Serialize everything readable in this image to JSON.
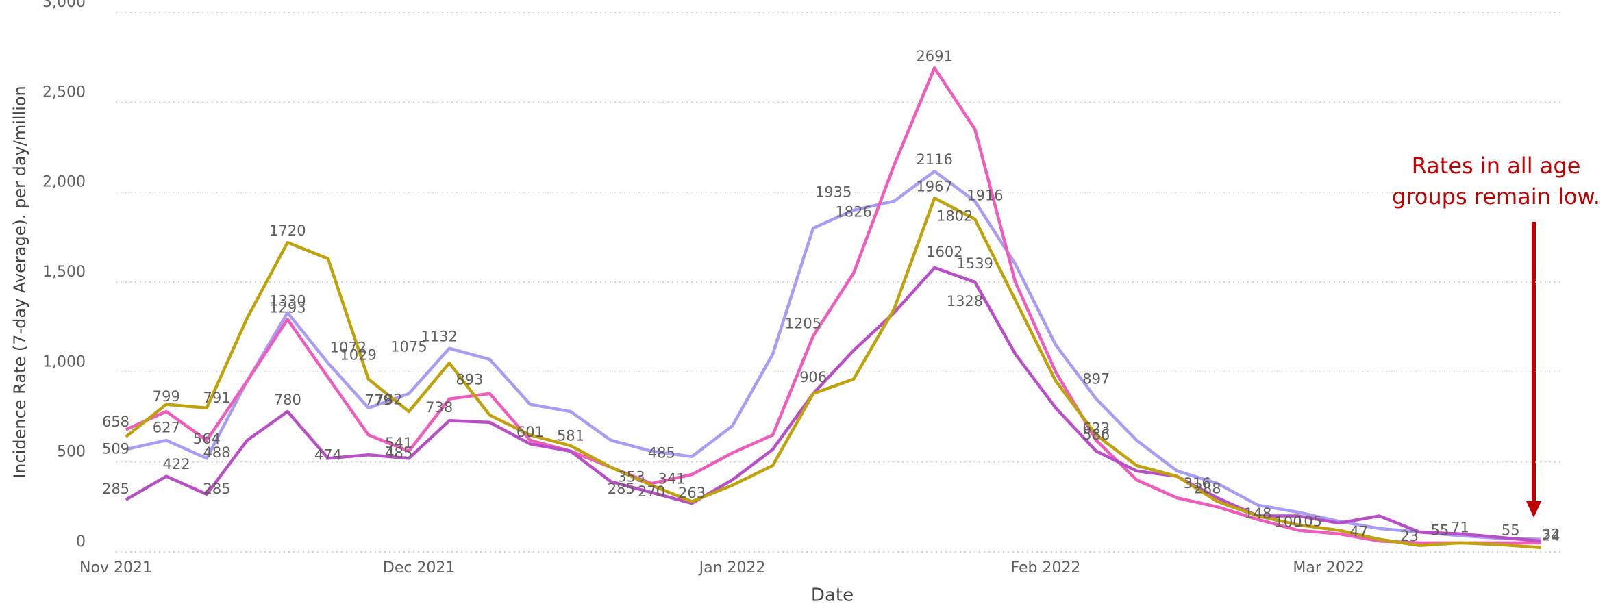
{
  "chart_data": {
    "type": "line",
    "x_label": "Date",
    "y_label": "Incidence Rate (7-day Average). per day/million",
    "xlim": [
      0,
      143
    ],
    "xticks": [
      {
        "value": 0,
        "label": "Nov 2021"
      },
      {
        "value": 30,
        "label": "Dec 2021"
      },
      {
        "value": 61,
        "label": "Jan 2022"
      },
      {
        "value": 92,
        "label": "Feb 2022"
      },
      {
        "value": 120,
        "label": "Mar 2022"
      }
    ],
    "ylim": [
      0,
      3000
    ],
    "yticks": [
      0,
      500,
      {
        "value": 1000,
        "label": "1,000"
      },
      {
        "value": 1500,
        "label": "1,500"
      },
      {
        "value": 2000,
        "label": "2,000"
      },
      {
        "value": 2500,
        "label": "2,500"
      },
      {
        "value": 3000,
        "label": "3,000"
      }
    ],
    "grid": true,
    "x": [
      1,
      5,
      9,
      13,
      17,
      21,
      25,
      29,
      33,
      37,
      41,
      45,
      49,
      53,
      57,
      61,
      65,
      69,
      73,
      77,
      81,
      85,
      89,
      93,
      97,
      101,
      105,
      109,
      113,
      117,
      121,
      125,
      129,
      133,
      137,
      141
    ],
    "series": [
      {
        "color": "#a99cf5",
        "values": [
          570,
          620,
          520,
          950,
          1330,
          1050,
          800,
          880,
          1132,
          1070,
          820,
          780,
          620,
          560,
          530,
          700,
          1100,
          1800,
          1900,
          1950,
          2116,
          1950,
          1600,
          1150,
          850,
          620,
          450,
          380,
          260,
          220,
          170,
          130,
          110,
          90,
          75,
          70
        ]
      },
      {
        "color": "#ee5dbb",
        "values": [
          680,
          780,
          620,
          950,
          1293,
          970,
          650,
          560,
          850,
          880,
          620,
          560,
          470,
          380,
          430,
          550,
          650,
          1200,
          1550,
          2150,
          2691,
          2350,
          1500,
          1000,
          620,
          400,
          300,
          250,
          180,
          120,
          100,
          60,
          50,
          50,
          50,
          50
        ]
      },
      {
        "color": "#b94fc6",
        "values": [
          290,
          420,
          320,
          620,
          780,
          520,
          540,
          520,
          730,
          720,
          600,
          560,
          390,
          330,
          270,
          400,
          570,
          880,
          1120,
          1330,
          1580,
          1500,
          1100,
          800,
          560,
          450,
          420,
          300,
          200,
          200,
          160,
          200,
          110,
          100,
          80,
          60
        ]
      },
      {
        "color": "#bfa20c",
        "values": [
          640,
          820,
          800,
          1300,
          1720,
          1630,
          960,
          780,
          1050,
          760,
          650,
          590,
          470,
          370,
          280,
          370,
          480,
          880,
          960,
          1350,
          1967,
          1850,
          1400,
          950,
          650,
          480,
          420,
          280,
          200,
          150,
          120,
          70,
          35,
          50,
          40,
          24
        ]
      }
    ],
    "data_labels": [
      {
        "x": 0,
        "value": 658
      },
      {
        "x": 0,
        "value": 509
      },
      {
        "x": 0,
        "value": 285
      },
      {
        "x": 5,
        "value": 799
      },
      {
        "x": 5,
        "value": 627
      },
      {
        "x": 6,
        "value": 422
      },
      {
        "x": 10,
        "value": 791
      },
      {
        "x": 9,
        "value": 564
      },
      {
        "x": 10,
        "value": 488
      },
      {
        "x": 10,
        "value": 285
      },
      {
        "x": 17,
        "value": 1720
      },
      {
        "x": 17,
        "value": 1293
      },
      {
        "x": 17,
        "value": 1330
      },
      {
        "x": 17,
        "value": 780
      },
      {
        "x": 21,
        "value": 474
      },
      {
        "x": 23,
        "value": 1072
      },
      {
        "x": 24,
        "value": 1029
      },
      {
        "x": 26,
        "value": 779
      },
      {
        "x": 27,
        "value": 782
      },
      {
        "x": 28,
        "value": 541
      },
      {
        "x": 28,
        "value": 485
      },
      {
        "x": 29,
        "value": 1075
      },
      {
        "x": 32,
        "value": 1132
      },
      {
        "x": 32,
        "value": 738
      },
      {
        "x": 35,
        "value": 893
      },
      {
        "x": 41,
        "value": 601
      },
      {
        "x": 45,
        "value": 581
      },
      {
        "x": 51,
        "value": 353
      },
      {
        "x": 54,
        "value": 485
      },
      {
        "x": 55,
        "value": 341
      },
      {
        "x": 50,
        "value": 285
      },
      {
        "x": 53,
        "value": 270
      },
      {
        "x": 57,
        "value": 263
      },
      {
        "x": 68,
        "value": 1205
      },
      {
        "x": 69,
        "value": 906
      },
      {
        "x": 71,
        "value": 1935
      },
      {
        "x": 73,
        "value": 1826
      },
      {
        "x": 81,
        "value": 2691
      },
      {
        "x": 81,
        "value": 2116
      },
      {
        "x": 81,
        "value": 1967
      },
      {
        "x": 83,
        "value": 1802
      },
      {
        "x": 86,
        "value": 1916
      },
      {
        "x": 82,
        "value": 1602
      },
      {
        "x": 85,
        "value": 1539
      },
      {
        "x": 84,
        "value": 1328
      },
      {
        "x": 97,
        "value": 897
      },
      {
        "x": 97,
        "value": 623
      },
      {
        "x": 97,
        "value": 586
      },
      {
        "x": 108,
        "value": 288
      },
      {
        "x": 107,
        "value": 316
      },
      {
        "x": 113,
        "value": 148
      },
      {
        "x": 116,
        "value": 100
      },
      {
        "x": 118,
        "value": 105
      },
      {
        "x": 123,
        "value": 47
      },
      {
        "x": 128,
        "value": 23
      },
      {
        "x": 131,
        "value": 55
      },
      {
        "x": 133,
        "value": 71
      },
      {
        "x": 138,
        "value": 55
      },
      {
        "x": 142,
        "value": 32
      },
      {
        "x": 142,
        "value": 24
      }
    ],
    "annotation": [
      "Rates in all age",
      "groups remain low."
    ]
  }
}
